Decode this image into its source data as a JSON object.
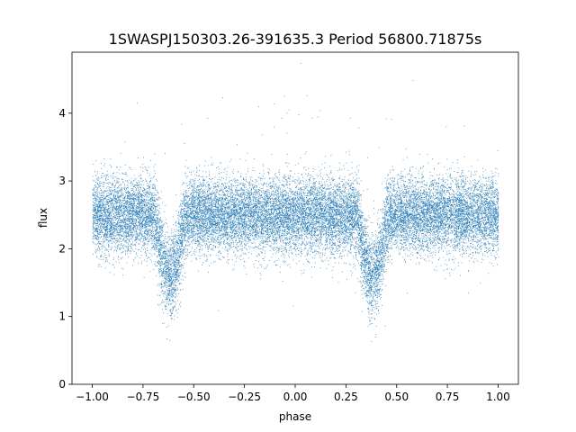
{
  "chart_data": {
    "type": "scatter",
    "title": "1SWASPJ150303.26-391635.3 Period 56800.71875s",
    "xlabel": "phase",
    "ylabel": "flux",
    "xlim": [
      -1.1,
      1.1
    ],
    "ylim": [
      0,
      4.9
    ],
    "xticks": [
      -1.0,
      -0.75,
      -0.5,
      -0.25,
      0.0,
      0.25,
      0.5,
      0.75,
      1.0
    ],
    "xtick_labels": [
      "−1.00",
      "−0.75",
      "−0.50",
      "−0.25",
      "0.00",
      "0.25",
      "0.50",
      "0.75",
      "1.00"
    ],
    "yticks": [
      0,
      1,
      2,
      3,
      4
    ],
    "ytick_labels": [
      "0",
      "1",
      "2",
      "3",
      "4"
    ],
    "grid": false,
    "legend": "none",
    "marker_color": "#1f77b4",
    "series": [
      {
        "phase_range": [
          -1.0,
          1.0
        ],
        "baseline_flux": 2.5,
        "flux_spread": 0.55,
        "eclipses": [
          {
            "phase": -0.62,
            "min_flux": 1.6,
            "half_width": 0.08
          },
          {
            "phase": 0.38,
            "min_flux": 1.6,
            "half_width": 0.08
          }
        ]
      }
    ]
  }
}
